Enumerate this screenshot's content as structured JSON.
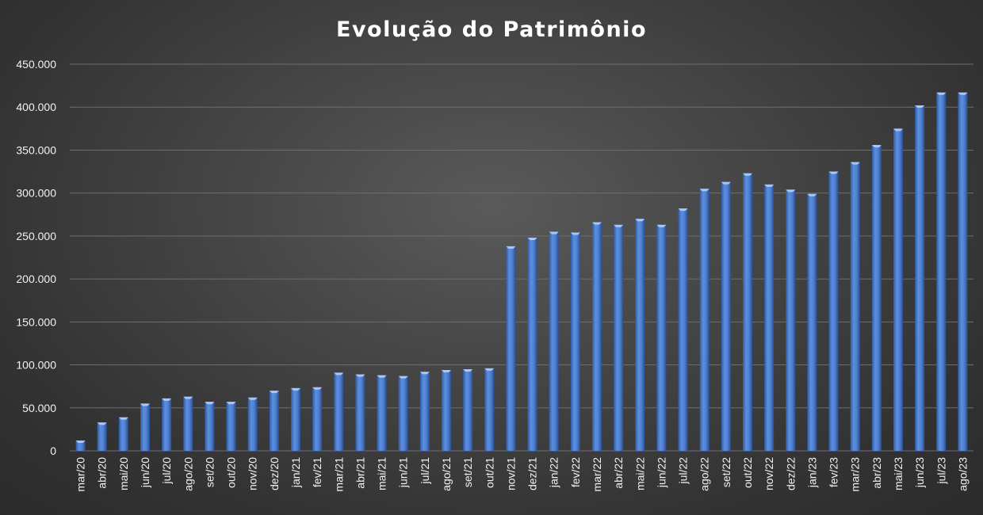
{
  "chart_data": {
    "type": "bar",
    "title": "Evolução do Patrimônio",
    "xlabel": "",
    "ylabel": "",
    "ylim": [
      0,
      450000
    ],
    "yticks": [
      0,
      50000,
      100000,
      150000,
      200000,
      250000,
      300000,
      350000,
      400000,
      450000
    ],
    "ytick_labels": [
      "0",
      "50.000",
      "100.000",
      "150.000",
      "200.000",
      "250.000",
      "300.000",
      "350.000",
      "400.000",
      "450.000"
    ],
    "grid": true,
    "legend": "none",
    "colors": {
      "bar": "#4f7fd0",
      "bar_top": "#aac8f3",
      "grid": "#6e6e6e",
      "text": "#f2f2f2"
    },
    "categories": [
      "mar/20",
      "abr/20",
      "mai/20",
      "jun/20",
      "jul/20",
      "ago/20",
      "set/20",
      "out/20",
      "nov/20",
      "dez/20",
      "jan/21",
      "fev/21",
      "mar/21",
      "abr/21",
      "mai/21",
      "jun/21",
      "jul/21",
      "ago/21",
      "set/21",
      "out/21",
      "nov/21",
      "dez/21",
      "jan/22",
      "fev/22",
      "mar/22",
      "abr/22",
      "mai/22",
      "jun/22",
      "jul/22",
      "ago/22",
      "set/22",
      "out/22",
      "nov/22",
      "dez/22",
      "jan/23",
      "fev/23",
      "mar/23",
      "abr/23",
      "mai/23",
      "jun/23",
      "jul/23",
      "ago/23"
    ],
    "values": [
      12000,
      33000,
      39000,
      55000,
      61000,
      63000,
      57000,
      57000,
      62000,
      70000,
      73000,
      74000,
      91000,
      89000,
      88000,
      87000,
      92000,
      94000,
      95000,
      96000,
      238000,
      248000,
      255000,
      254000,
      266000,
      263000,
      270000,
      263000,
      282000,
      305000,
      313000,
      323000,
      310000,
      304000,
      299000,
      325000,
      336000,
      356000,
      375000,
      402000,
      417000,
      417000
    ]
  }
}
